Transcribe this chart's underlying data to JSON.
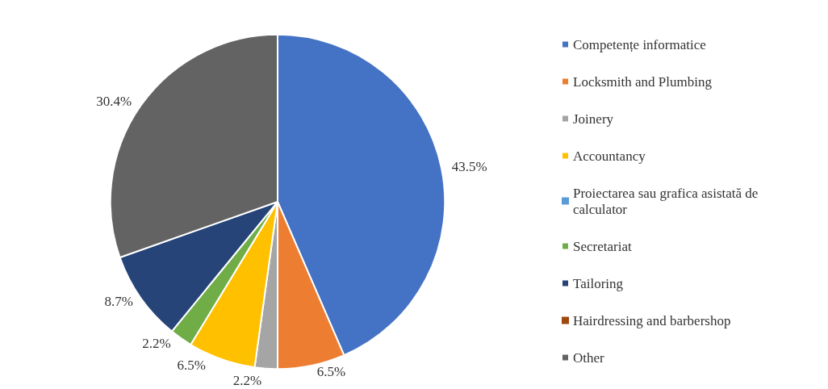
{
  "chart_data": {
    "type": "pie",
    "categories": [
      "Competențe informatice",
      "Locksmith and Plumbing",
      "Joinery",
      "Accountancy",
      "Proiectarea sau grafica asistată de calculator",
      "Secretariat",
      "Tailoring",
      "Hairdressing and barbershop",
      "Other"
    ],
    "values": [
      43.5,
      6.5,
      2.2,
      6.5,
      0,
      2.2,
      8.7,
      0,
      30.4
    ],
    "value_labels": [
      "43.5%",
      "6.5%",
      "2.2%",
      "6.5%",
      null,
      "2.2%",
      "8.7%",
      null,
      "30.4%"
    ],
    "colors": [
      "#4472c4",
      "#ed7d31",
      "#a5a5a5",
      "#ffc000",
      "#5b9bd5",
      "#70ad47",
      "#264478",
      "#9e480e",
      "#636363"
    ],
    "legend": "right"
  }
}
